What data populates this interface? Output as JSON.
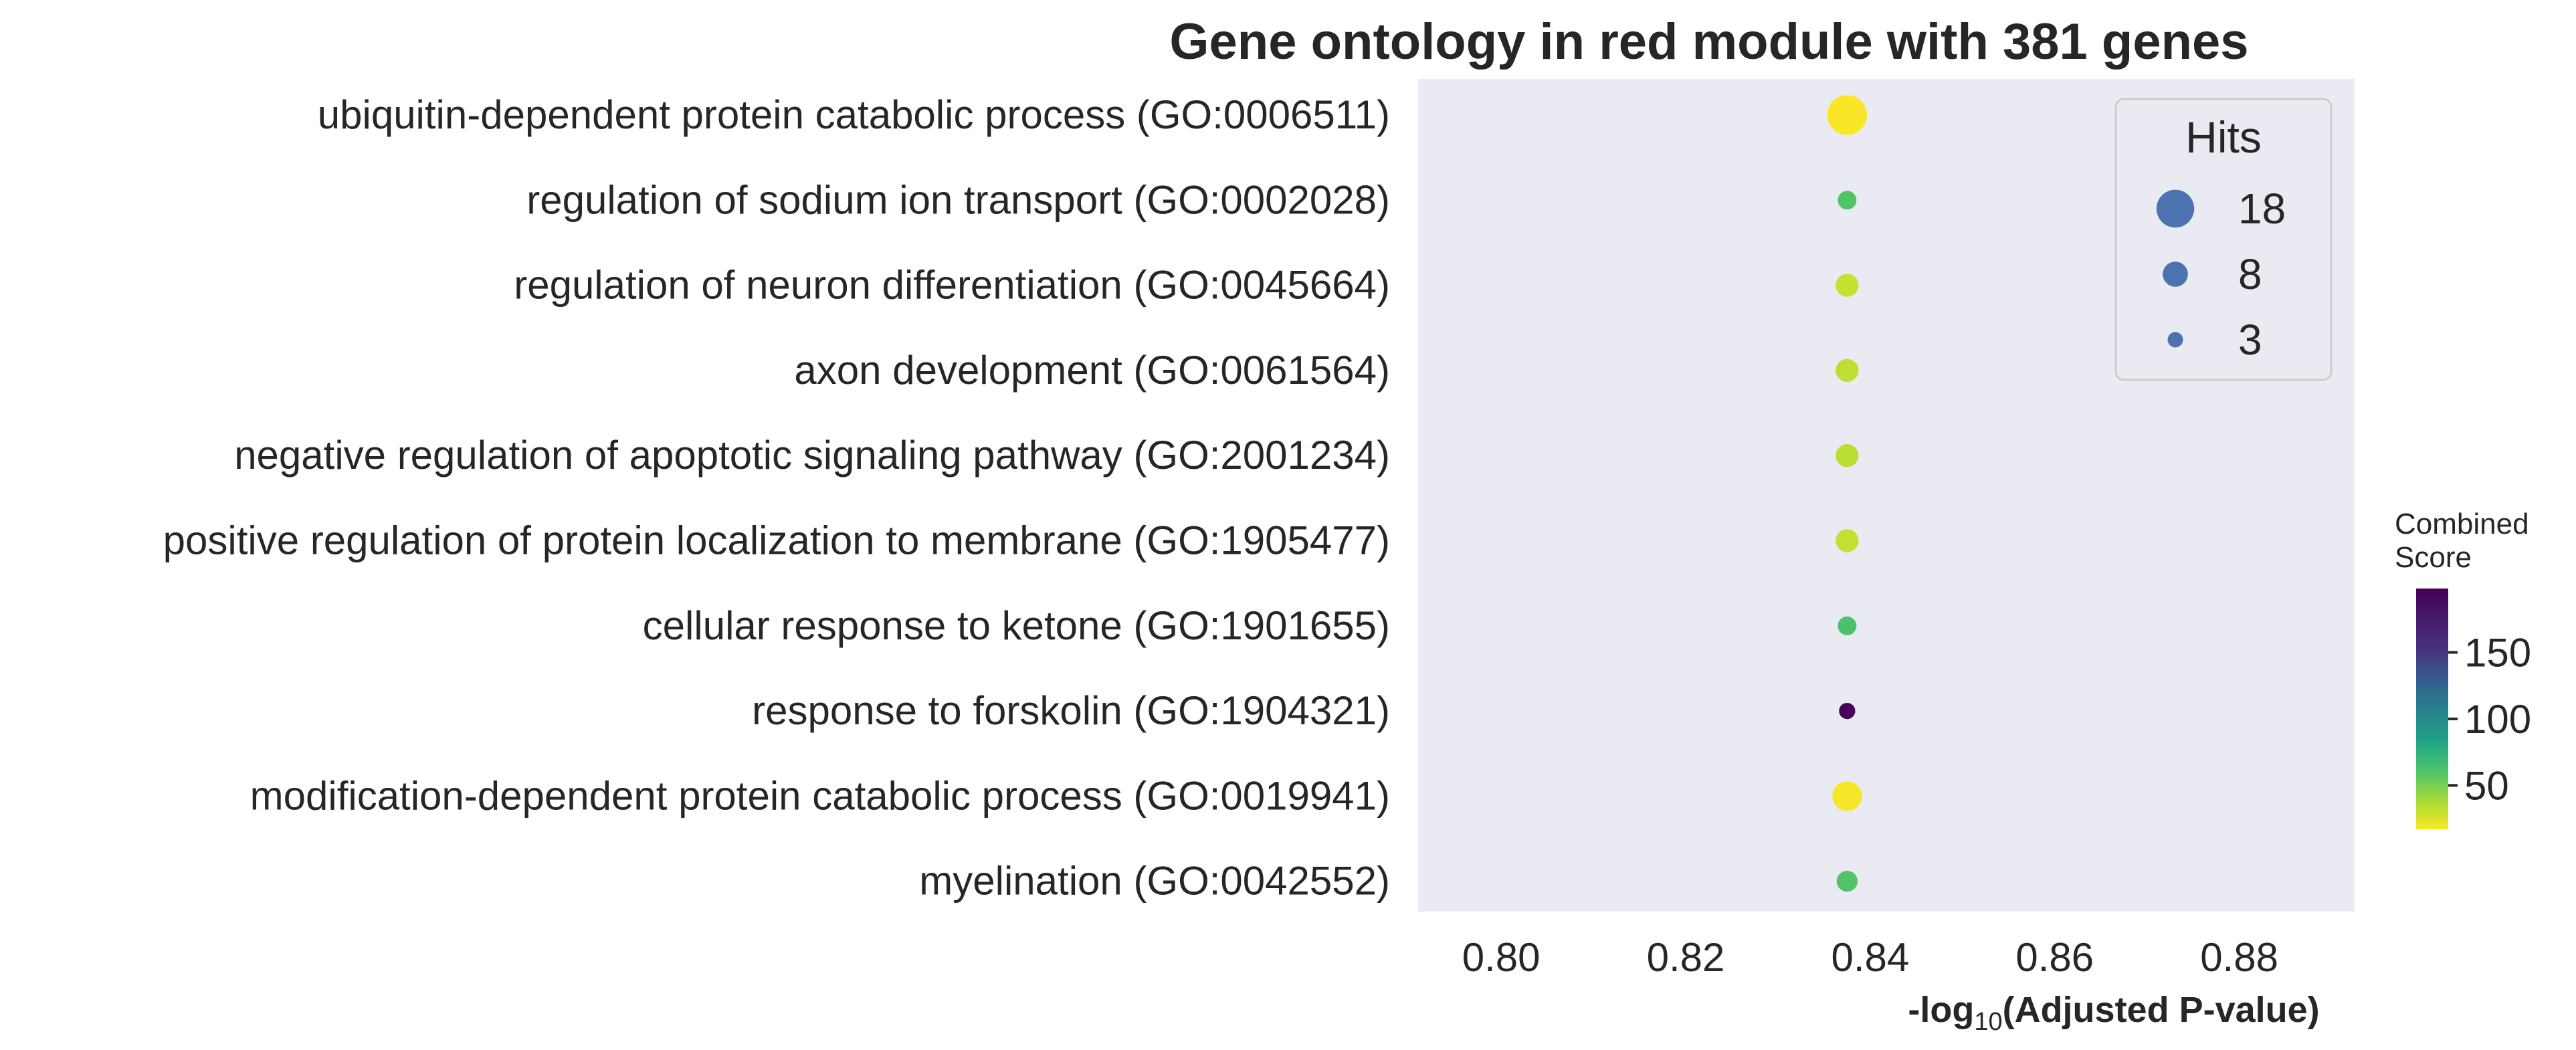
{
  "chart_data": {
    "type": "scatter",
    "title": "Gene ontology in red module with 381 genes",
    "xlabel_prefix": "-log",
    "xlabel_sub": "10",
    "xlabel_suffix": "(Adjusted P-value)",
    "xlim": [
      0.791,
      0.8925
    ],
    "xticks": [
      "0.80",
      "0.82",
      "0.84",
      "0.86",
      "0.88"
    ],
    "grid": false,
    "categories": [
      "ubiquitin-dependent protein catabolic process (GO:0006511)",
      "regulation of sodium ion transport (GO:0002028)",
      "regulation of neuron differentiation (GO:0045664)",
      "axon development (GO:0061564)",
      "negative regulation of apoptotic signaling pathway (GO:2001234)",
      "positive regulation of protein localization to membrane (GO:1905477)",
      "cellular response to ketone (GO:1901655)",
      "response to forskolin (GO:1904321)",
      "modification-dependent protein catabolic process (GO:0019941)",
      "myelination (GO:0042552)"
    ],
    "points": [
      {
        "x": 0.8375,
        "hits": 18,
        "combined_score": 18
      },
      {
        "x": 0.8375,
        "hits": 4,
        "combined_score": 60
      },
      {
        "x": 0.8375,
        "hits": 6,
        "combined_score": 30
      },
      {
        "x": 0.8375,
        "hits": 6,
        "combined_score": 32
      },
      {
        "x": 0.8375,
        "hits": 6,
        "combined_score": 33
      },
      {
        "x": 0.8375,
        "hits": 6,
        "combined_score": 31
      },
      {
        "x": 0.8375,
        "hits": 4,
        "combined_score": 62
      },
      {
        "x": 0.8375,
        "hits": 3,
        "combined_score": 195
      },
      {
        "x": 0.8375,
        "hits": 10,
        "combined_score": 19
      },
      {
        "x": 0.8375,
        "hits": 5,
        "combined_score": 60
      }
    ],
    "size_legend": {
      "title": "Hits",
      "placement": "top-right",
      "entries": [
        {
          "label": "18",
          "hits": 18
        },
        {
          "label": "8",
          "hits": 8
        },
        {
          "label": "3",
          "hits": 3
        }
      ]
    },
    "colorbar": {
      "title_line1": "Combined",
      "title_line2": "Score",
      "colormap": "viridis_r",
      "range": [
        17,
        198
      ],
      "ticks": [
        "50",
        "100",
        "150"
      ],
      "tick_values": [
        50,
        100,
        150
      ]
    },
    "colors": {
      "plot_background": "#eaeaf2",
      "legend_marker": "#4c72b0",
      "legend_border": "#cccccc"
    }
  }
}
